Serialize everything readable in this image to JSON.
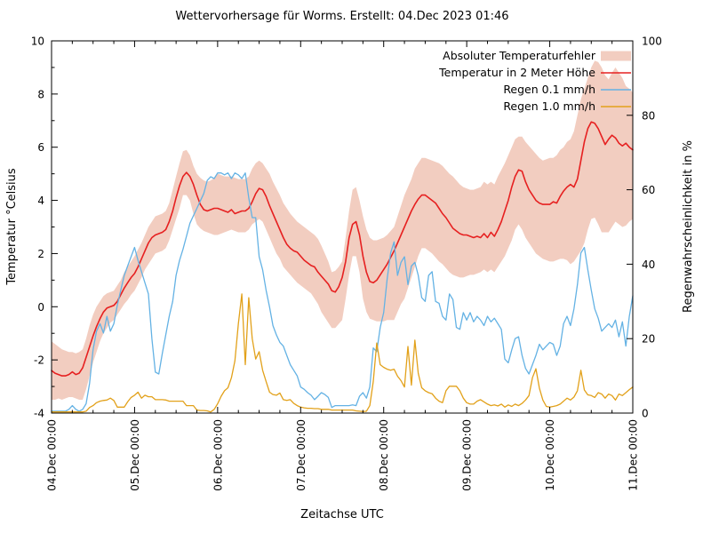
{
  "title": "Wettervorhersage für Worms. Erstellt: 04.Dec 2023 01:46",
  "axes": {
    "x_label": "Zeitachse UTC",
    "y_left_label": "Temperatur °Celsius",
    "y_right_label": "Regenwahrscheinlichkeit in %",
    "x_ticks": [
      "04.Dec 00:00",
      "05.Dec 00:00",
      "06.Dec 00:00",
      "07.Dec 00:00",
      "08.Dec 00:00",
      "09.Dec 00:00",
      "10.Dec 00:00",
      "11.Dec 00:00"
    ],
    "y_left_ticks": [
      10,
      8,
      6,
      4,
      2,
      0,
      -2,
      -4
    ],
    "y_right_ticks": [
      100,
      80,
      60,
      40,
      20,
      0
    ],
    "y_left_range": [
      -4,
      10
    ],
    "y_right_range": [
      0,
      100
    ],
    "x_range_hours": [
      0,
      168
    ]
  },
  "legend": [
    {
      "label": "Absoluter Temperaturfehler",
      "type": "band",
      "color": "#f2cdc0"
    },
    {
      "label": "Temperatur in 2 Meter Höhe",
      "type": "line",
      "color": "#e62020"
    },
    {
      "label": "Regen 0.1 mm/h",
      "type": "line",
      "color": "#64b2e4"
    },
    {
      "label": "Regen 1.0 mm/h",
      "type": "line",
      "color": "#e2a11a"
    }
  ],
  "colors": {
    "band": "#f2cdc0",
    "temperature": "#e62020",
    "rain01": "#64b2e4",
    "rain10": "#e2a11a",
    "axis": "#000000",
    "background": "#ffffff"
  },
  "chart_data": {
    "type": "line",
    "title": "Wettervorhersage für Worms. Erstellt: 04.Dec 2023 01:46",
    "xlabel": "Zeitachse UTC",
    "ylabel_left": "Temperatur °Celsius",
    "ylabel_right": "Regenwahrscheinlichkeit in %",
    "x_unit": "hours since 04.Dec 2023 00:00 UTC, hourly steps",
    "x_hours": [
      0,
      168
    ],
    "ylim_left": [
      -4,
      10
    ],
    "ylim_right": [
      0,
      100
    ],
    "grid": false,
    "legend_position": "top-right-inside",
    "series": [
      {
        "name": "Absoluter Temperaturfehler (lower bound, °C)",
        "style": "band-lower",
        "values": [
          -3.5,
          -3.5,
          -3.45,
          -3.5,
          -3.45,
          -3.4,
          -3.4,
          -3.45,
          -3.5,
          -3.5,
          -3.1,
          -2.6,
          -2.1,
          -1.7,
          -1.3,
          -1.0,
          -0.8,
          -0.6,
          -0.5,
          -0.3,
          -0.1,
          0.1,
          0.25,
          0.45,
          0.6,
          0.85,
          1.1,
          1.4,
          1.6,
          1.8,
          2.0,
          2.05,
          2.1,
          2.2,
          2.5,
          2.9,
          3.3,
          3.7,
          4.2,
          4.2,
          4.0,
          3.5,
          3.1,
          2.95,
          2.85,
          2.8,
          2.75,
          2.7,
          2.7,
          2.75,
          2.8,
          2.85,
          2.9,
          2.85,
          2.8,
          2.8,
          2.8,
          2.9,
          3.1,
          3.2,
          3.3,
          3.2,
          2.9,
          2.6,
          2.3,
          2.0,
          1.8,
          1.5,
          1.35,
          1.2,
          1.05,
          0.9,
          0.8,
          0.7,
          0.6,
          0.5,
          0.3,
          0.1,
          -0.2,
          -0.4,
          -0.6,
          -0.8,
          -0.8,
          -0.65,
          -0.5,
          0.3,
          1.2,
          1.9,
          1.9,
          1.3,
          0.3,
          -0.2,
          -0.45,
          -0.5,
          -0.55,
          -0.55,
          -0.55,
          -0.5,
          -0.5,
          -0.5,
          -0.2,
          0.1,
          0.3,
          0.7,
          1.1,
          1.5,
          1.9,
          2.2,
          2.2,
          2.1,
          2.0,
          1.85,
          1.7,
          1.6,
          1.45,
          1.3,
          1.2,
          1.15,
          1.1,
          1.1,
          1.15,
          1.2,
          1.2,
          1.25,
          1.3,
          1.4,
          1.3,
          1.4,
          1.3,
          1.5,
          1.7,
          1.9,
          2.2,
          2.5,
          2.9,
          3.1,
          2.9,
          2.6,
          2.4,
          2.2,
          2.0,
          1.9,
          1.8,
          1.75,
          1.7,
          1.7,
          1.75,
          1.8,
          1.8,
          1.75,
          1.6,
          1.7,
          1.9,
          2.1,
          2.4,
          2.9,
          3.3,
          3.35,
          3.1,
          2.8,
          2.8,
          2.8,
          3.0,
          3.2,
          3.1,
          3.0,
          3.05,
          3.2,
          3.3
        ]
      },
      {
        "name": "Absoluter Temperaturfehler (upper bound, °C)",
        "style": "band-upper",
        "values": [
          -1.3,
          -1.4,
          -1.5,
          -1.6,
          -1.65,
          -1.7,
          -1.7,
          -1.75,
          -1.7,
          -1.6,
          -1.2,
          -0.7,
          -0.3,
          0.0,
          0.2,
          0.4,
          0.5,
          0.55,
          0.6,
          0.8,
          1.0,
          1.3,
          1.5,
          1.7,
          1.9,
          2.15,
          2.4,
          2.7,
          3.0,
          3.2,
          3.4,
          3.45,
          3.5,
          3.6,
          3.9,
          4.4,
          4.9,
          5.4,
          5.85,
          5.9,
          5.7,
          5.3,
          5.0,
          4.85,
          4.75,
          4.7,
          4.75,
          4.85,
          5.0,
          4.95,
          4.9,
          4.9,
          4.9,
          4.85,
          4.8,
          4.8,
          4.8,
          4.9,
          5.2,
          5.4,
          5.5,
          5.4,
          5.2,
          5.0,
          4.7,
          4.45,
          4.2,
          3.9,
          3.7,
          3.5,
          3.35,
          3.2,
          3.1,
          3.0,
          2.9,
          2.8,
          2.7,
          2.55,
          2.3,
          2.0,
          1.7,
          1.3,
          1.35,
          1.5,
          1.7,
          2.6,
          3.6,
          4.4,
          4.5,
          4.0,
          3.4,
          2.9,
          2.6,
          2.5,
          2.5,
          2.55,
          2.6,
          2.7,
          2.85,
          3.0,
          3.4,
          3.8,
          4.2,
          4.5,
          4.8,
          5.2,
          5.4,
          5.6,
          5.6,
          5.55,
          5.5,
          5.45,
          5.4,
          5.3,
          5.15,
          5.0,
          4.9,
          4.75,
          4.6,
          4.5,
          4.45,
          4.4,
          4.4,
          4.45,
          4.5,
          4.7,
          4.6,
          4.7,
          4.6,
          4.9,
          5.15,
          5.4,
          5.7,
          6.0,
          6.3,
          6.4,
          6.4,
          6.2,
          6.05,
          5.9,
          5.75,
          5.6,
          5.5,
          5.55,
          5.6,
          5.6,
          5.7,
          5.9,
          6.0,
          6.2,
          6.3,
          6.6,
          7.2,
          7.8,
          8.2,
          8.6,
          9.0,
          9.25,
          9.2,
          9.0,
          8.7,
          8.55,
          8.8,
          9.0,
          8.8,
          8.6,
          8.3,
          8.2,
          8.05
        ]
      },
      {
        "name": "Temperatur in 2 Meter Höhe (°C)",
        "style": "line",
        "axis": "left",
        "values": [
          -2.4,
          -2.5,
          -2.55,
          -2.6,
          -2.6,
          -2.55,
          -2.45,
          -2.55,
          -2.5,
          -2.3,
          -1.9,
          -1.5,
          -1.1,
          -0.75,
          -0.45,
          -0.2,
          -0.05,
          0.0,
          0.05,
          0.2,
          0.45,
          0.7,
          0.9,
          1.1,
          1.25,
          1.5,
          1.8,
          2.1,
          2.4,
          2.6,
          2.7,
          2.75,
          2.8,
          2.9,
          3.2,
          3.6,
          4.1,
          4.55,
          4.9,
          5.05,
          4.9,
          4.6,
          4.2,
          3.85,
          3.65,
          3.6,
          3.65,
          3.7,
          3.7,
          3.65,
          3.6,
          3.55,
          3.65,
          3.5,
          3.55,
          3.6,
          3.6,
          3.7,
          3.95,
          4.25,
          4.45,
          4.4,
          4.15,
          3.8,
          3.5,
          3.2,
          2.9,
          2.6,
          2.35,
          2.2,
          2.1,
          2.05,
          1.9,
          1.75,
          1.65,
          1.55,
          1.5,
          1.3,
          1.15,
          1.0,
          0.85,
          0.6,
          0.55,
          0.75,
          1.1,
          1.7,
          2.6,
          3.1,
          3.2,
          2.7,
          1.9,
          1.3,
          0.95,
          0.9,
          1.0,
          1.2,
          1.4,
          1.6,
          1.85,
          2.1,
          2.4,
          2.7,
          3.0,
          3.3,
          3.6,
          3.85,
          4.05,
          4.2,
          4.2,
          4.1,
          4.0,
          3.9,
          3.7,
          3.5,
          3.35,
          3.15,
          2.95,
          2.85,
          2.75,
          2.7,
          2.7,
          2.65,
          2.6,
          2.65,
          2.6,
          2.75,
          2.6,
          2.8,
          2.65,
          2.9,
          3.2,
          3.6,
          4.0,
          4.5,
          4.9,
          5.15,
          5.1,
          4.7,
          4.4,
          4.2,
          4.0,
          3.9,
          3.85,
          3.85,
          3.85,
          3.95,
          3.9,
          4.15,
          4.35,
          4.5,
          4.6,
          4.5,
          4.8,
          5.5,
          6.2,
          6.7,
          6.95,
          6.9,
          6.7,
          6.4,
          6.1,
          6.3,
          6.45,
          6.35,
          6.15,
          6.05,
          6.15,
          6.0,
          5.9
        ]
      },
      {
        "name": "Regen 0.1 mm/h (%)",
        "style": "line",
        "axis": "right",
        "values": [
          0.5,
          0.5,
          0.5,
          0.5,
          0.5,
          1.0,
          2.0,
          1.0,
          0.5,
          1.0,
          2.5,
          8,
          17,
          22,
          24,
          21.5,
          26,
          22,
          24,
          29,
          33,
          37,
          39.5,
          42,
          44.5,
          41,
          38,
          35,
          32,
          20,
          11,
          10.5,
          16,
          21,
          26,
          30,
          37,
          41,
          44,
          47.5,
          51,
          53,
          55,
          57,
          59,
          62.5,
          63.5,
          63,
          64.5,
          64.5,
          64,
          64.5,
          63,
          64.5,
          64,
          63,
          64.5,
          57.8,
          52.5,
          52.5,
          42,
          38.5,
          33,
          28.5,
          23.5,
          21,
          19,
          18,
          15.5,
          13,
          11.5,
          10,
          7,
          6.4,
          5.5,
          4.8,
          3.6,
          4.5,
          5.5,
          5.0,
          4.2,
          1.5,
          2.0,
          2.0,
          2.0,
          2.0,
          2.0,
          2.2,
          2.0,
          4.5,
          5.5,
          4.0,
          7.0,
          17.5,
          16.5,
          23,
          27,
          36,
          43,
          46,
          37,
          40.5,
          42,
          34.5,
          39.5,
          40.5,
          37,
          31,
          30,
          37,
          38,
          30,
          29.5,
          26,
          25,
          32,
          30.5,
          23,
          22.5,
          27,
          25,
          27,
          24.5,
          26,
          25,
          23.5,
          26,
          24.5,
          25.5,
          24,
          22.5,
          14.5,
          13.5,
          17,
          20,
          20.5,
          15.5,
          12,
          10.5,
          13,
          15.5,
          18.5,
          17,
          18,
          19,
          18.5,
          15.5,
          18,
          24,
          26,
          23.5,
          28,
          34.5,
          43,
          44.5,
          38.5,
          33,
          28,
          25.5,
          22,
          23,
          24,
          23,
          25,
          20.5,
          24.5,
          18,
          26,
          31.5
        ]
      },
      {
        "name": "Regen 1.0 mm/h (%)",
        "style": "line",
        "axis": "right",
        "values": [
          0.3,
          0.3,
          0.3,
          0.3,
          0.3,
          0.3,
          0.3,
          0.3,
          0.3,
          0.3,
          0.5,
          1.5,
          2.0,
          2.8,
          3.2,
          3.4,
          3.5,
          4.0,
          3.4,
          1.6,
          1.6,
          1.6,
          3.0,
          4.2,
          4.8,
          5.6,
          4.0,
          4.8,
          4.4,
          4.4,
          3.6,
          3.6,
          3.6,
          3.5,
          3.2,
          3.2,
          3.2,
          3.2,
          3.2,
          2.0,
          2.0,
          2.0,
          0.8,
          0.7,
          0.7,
          0.6,
          0.3,
          1.0,
          2.5,
          4.5,
          6.0,
          6.8,
          9.5,
          14,
          24,
          32,
          13,
          31,
          20,
          14.5,
          16.5,
          11.5,
          8.5,
          5.6,
          5.0,
          4.8,
          5.4,
          3.6,
          3.4,
          3.6,
          2.6,
          2.0,
          1.6,
          1.4,
          1.3,
          1.3,
          1.2,
          1.2,
          1.0,
          1.0,
          1.0,
          0.8,
          0.8,
          0.8,
          0.8,
          0.8,
          0.8,
          0.8,
          0.6,
          0.5,
          0.4,
          0.5,
          2.0,
          8.5,
          18.8,
          13,
          12.3,
          11.8,
          11.5,
          11.8,
          9.9,
          8.7,
          7.0,
          17.9,
          7.5,
          19.6,
          10.7,
          6.8,
          6.0,
          5.5,
          5.2,
          4.0,
          3.2,
          2.8,
          6.0,
          7.2,
          7.2,
          7.2,
          6.0,
          4.0,
          2.8,
          2.4,
          2.4,
          3.2,
          3.6,
          3.0,
          2.4,
          2.0,
          2.2,
          1.9,
          2.4,
          1.6,
          2.2,
          1.8,
          2.4,
          2.0,
          2.6,
          3.5,
          4.7,
          9.5,
          11.9,
          6.7,
          3.5,
          1.8,
          1.6,
          1.8,
          2.0,
          2.4,
          3.2,
          4.0,
          3.5,
          4.3,
          6.0,
          11.5,
          6.2,
          4.9,
          4.7,
          4.2,
          5.5,
          5.1,
          4.0,
          5.1,
          4.7,
          3.5,
          5.1,
          4.7,
          5.5,
          6.3,
          7.0
        ]
      }
    ]
  }
}
